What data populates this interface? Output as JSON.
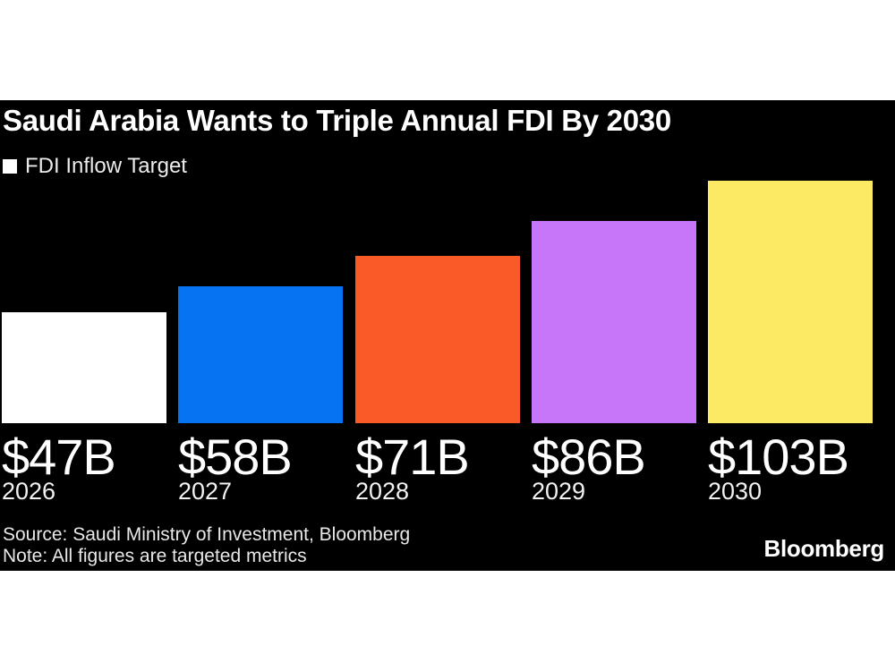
{
  "chart_data": {
    "type": "bar",
    "title": "Saudi Arabia Wants to Triple Annual FDI By 2030",
    "legend_label": "FDI Inflow Target",
    "categories": [
      "2026",
      "2027",
      "2028",
      "2029",
      "2030"
    ],
    "values": [
      47,
      58,
      71,
      86,
      103
    ],
    "value_labels": [
      "$47B",
      "$58B",
      "$71B",
      "$86B",
      "$103B"
    ],
    "bar_colors": [
      "#ffffff",
      "#0673f2",
      "#f95a27",
      "#c776f9",
      "#fce964"
    ],
    "unit_prefix": "$",
    "unit_suffix": "B",
    "ylim": [
      0,
      103
    ],
    "grid": false,
    "legend_position": "top-left",
    "source": "Source: Saudi Ministry of Investment, Bloomberg",
    "note": "Note: All figures are targeted metrics",
    "brand": "Bloomberg",
    "colors": {
      "background": "#000000",
      "page_margin": "#ffffff",
      "title_text": "#ffffff",
      "muted_text": "#e8e8e8"
    }
  }
}
